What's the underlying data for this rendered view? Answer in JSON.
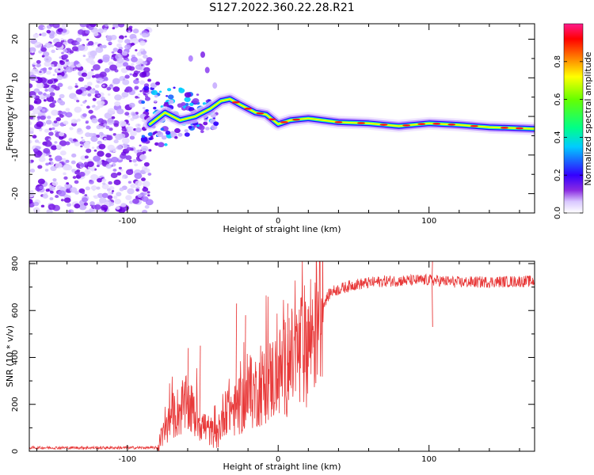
{
  "title": "S127.2022.360.22.28.R21",
  "chart_data": [
    {
      "type": "heatmap",
      "xlabel": "Height of straight line (km)",
      "ylabel": "Frequency (Hz)",
      "xlim": [
        -165,
        170
      ],
      "ylim": [
        -25,
        24
      ],
      "x_ticks": [
        -100,
        0,
        100
      ],
      "y_ticks": [
        -20,
        -10,
        0,
        10,
        20
      ],
      "colorbar": {
        "label": "Normalized spectral amplitude",
        "range": [
          0,
          1
        ],
        "ticks": [
          "0.0",
          "0.2",
          "0.4",
          "0.6",
          "0.8"
        ],
        "colors": [
          "#ffffff",
          "#8a2be2",
          "#3300ff",
          "#00ffff",
          "#00ff00",
          "#ffff00",
          "#ff0000",
          "#ff1a8c"
        ]
      },
      "noise_region_x": [
        -165,
        -85
      ],
      "ridge": [
        {
          "x": -85,
          "y": -2
        },
        {
          "x": -75,
          "y": 1
        },
        {
          "x": -65,
          "y": -1
        },
        {
          "x": -55,
          "y": 0
        },
        {
          "x": -45,
          "y": 2
        },
        {
          "x": -38,
          "y": 4
        },
        {
          "x": -32,
          "y": 4.5
        },
        {
          "x": -25,
          "y": 3
        },
        {
          "x": -15,
          "y": 1
        },
        {
          "x": -8,
          "y": 0.5
        },
        {
          "x": 0,
          "y": -2
        },
        {
          "x": 8,
          "y": -1
        },
        {
          "x": 20,
          "y": -0.5
        },
        {
          "x": 40,
          "y": -1.5
        },
        {
          "x": 60,
          "y": -1.8
        },
        {
          "x": 80,
          "y": -2.5
        },
        {
          "x": 100,
          "y": -1.8
        },
        {
          "x": 120,
          "y": -2.2
        },
        {
          "x": 140,
          "y": -2.8
        },
        {
          "x": 170,
          "y": -3.2
        }
      ]
    },
    {
      "type": "line",
      "xlabel": "Height of straight line (km)",
      "ylabel": "SNR (10 * v/v)",
      "xlim": [
        -165,
        170
      ],
      "ylim": [
        0,
        810
      ],
      "x_ticks": [
        -100,
        0,
        100
      ],
      "y_ticks": [
        0,
        200,
        400,
        600,
        800
      ],
      "series": [
        {
          "color": "#e83a3a",
          "values_envelope": [
            {
              "x": -165,
              "y": 15
            },
            {
              "x": -80,
              "y": 15
            },
            {
              "x": -77,
              "y": 60
            },
            {
              "x": -70,
              "y": 150
            },
            {
              "x": -60,
              "y": 200
            },
            {
              "x": -55,
              "y": 150
            },
            {
              "x": -48,
              "y": 100
            },
            {
              "x": -40,
              "y": 60
            },
            {
              "x": -35,
              "y": 200
            },
            {
              "x": -28,
              "y": 170
            },
            {
              "x": -20,
              "y": 230
            },
            {
              "x": -10,
              "y": 280
            },
            {
              "x": 0,
              "y": 330
            },
            {
              "x": 10,
              "y": 390
            },
            {
              "x": 20,
              "y": 470
            },
            {
              "x": 27,
              "y": 600
            },
            {
              "x": 35,
              "y": 680
            },
            {
              "x": 50,
              "y": 710
            },
            {
              "x": 70,
              "y": 725
            },
            {
              "x": 100,
              "y": 730
            },
            {
              "x": 120,
              "y": 720
            },
            {
              "x": 170,
              "y": 725
            }
          ],
          "spikes": [
            {
              "x": -60,
              "y": 440
            },
            {
              "x": -52,
              "y": 450
            },
            {
              "x": -28,
              "y": 630
            },
            {
              "x": -22,
              "y": 580
            },
            {
              "x": -12,
              "y": 450
            },
            {
              "x": 6,
              "y": 630
            },
            {
              "x": 14,
              "y": 210
            },
            {
              "x": 102,
              "y": 830
            },
            {
              "x": 102,
              "y": 530
            }
          ]
        }
      ]
    }
  ]
}
